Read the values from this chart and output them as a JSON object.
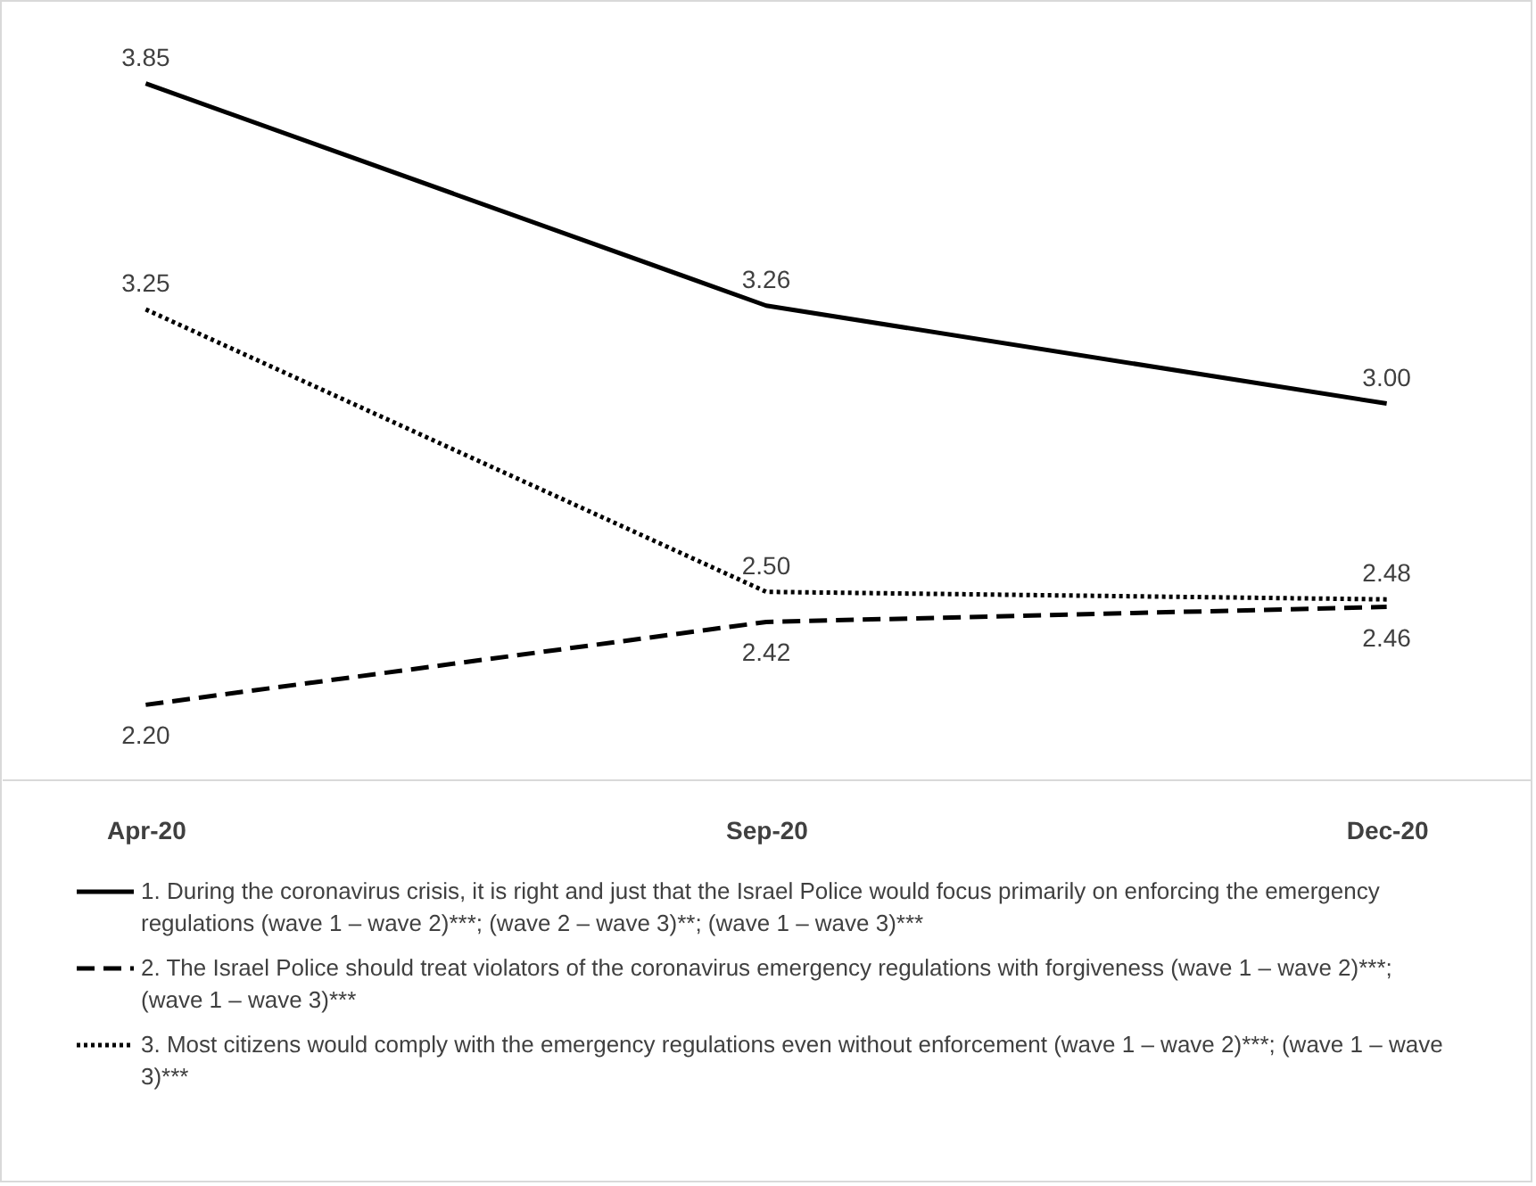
{
  "chart_data": {
    "type": "line",
    "categories": [
      "Apr-20",
      "Sep-20",
      "Dec-20"
    ],
    "legend": "bottom",
    "series": [
      {
        "name": "1. During the coronavirus crisis, it is right and just that the Israel Police would focus primarily on enforcing the emergency regulations (wave 1 – wave 2)***; (wave 2 – wave 3)**; (wave 1 – wave 3)***",
        "color": "#000000",
        "line_style": "solid",
        "values": [
          3.85,
          3.26,
          3.0
        ],
        "value_labels": [
          "3.85",
          "3.26",
          "3.00"
        ]
      },
      {
        "name": "2. The Israel Police should treat violators of the coronavirus emergency regulations with forgiveness (wave 1 – wave 2)***; (wave 1 – wave 3)***",
        "color": "#000000",
        "line_style": "dashed",
        "values": [
          2.2,
          2.42,
          2.46
        ],
        "value_labels": [
          "2.20",
          "2.42",
          "2.46"
        ]
      },
      {
        "name": "3. Most citizens would comply with the emergency regulations even without enforcement (wave 1 – wave 2)***; (wave 1 – wave 3)***",
        "color": "#000000",
        "line_style": "dotted",
        "values": [
          3.25,
          2.5,
          2.48
        ],
        "value_labels": [
          "3.25",
          "2.50",
          "2.48"
        ]
      }
    ]
  }
}
